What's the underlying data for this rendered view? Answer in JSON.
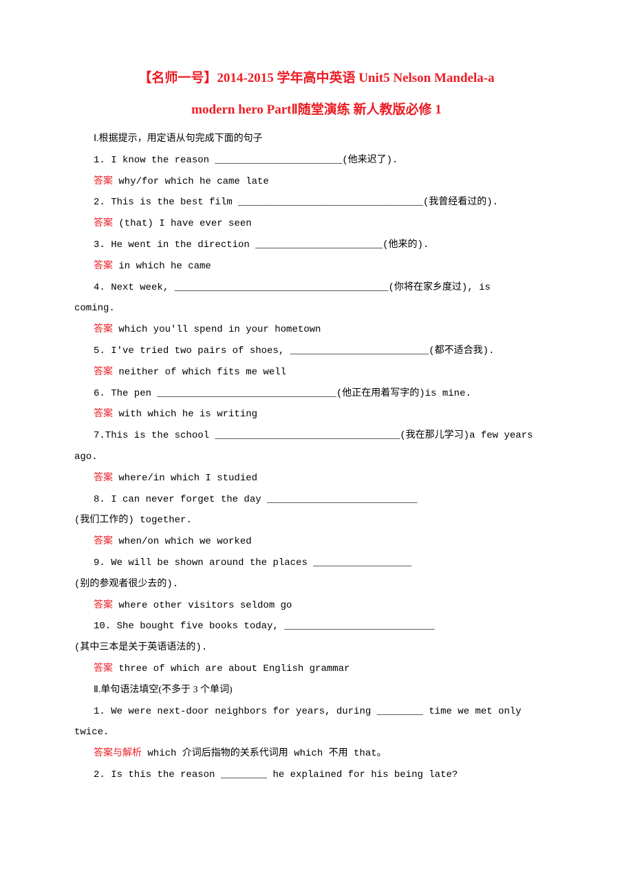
{
  "title_line1": "【名师一号】2014-2015 学年高中英语 Unit5 Nelson Mandela-a",
  "title_line2": "modern hero PartⅡ随堂演练 新人教版必修 1",
  "section1_header": "Ⅰ.根据提示，用定语从句完成下面的句子",
  "answer_label": "答案",
  "answer_explain_label": "答案与解析",
  "section1": {
    "q1": "1. I know the reason ______________________(他来迟了).",
    "a1": "  why/for which he came late",
    "q2": "2. This is the best film ________________________________(我曾经看过的).",
    "a2": "  (that) I have ever seen",
    "q3": "3. He went in the direction ______________________(他来的).",
    "a3": "  in which he came",
    "q4_part1": "4. Next week, _____________________________________(你将在家乡度过), is",
    "q4_part2": "coming.",
    "a4": "  which you'll spend in your hometown",
    "q5": "5. I've tried two pairs of shoes, ________________________(都不适合我).",
    "a5": "  neither of which fits me well",
    "q6": "6. The pen _______________________________(他正在用着写字的)is mine.",
    "a6": "  with which he is writing",
    "q7_part1": "7.This is the school ________________________________(我在那儿学习)a few years",
    "q7_part2": "ago.",
    "a7": "  where/in which I studied",
    "q8_part1": "8. I can never forget the day __________________________",
    "q8_part2": " (我们工作的) together.",
    "a8": "  when/on which we worked",
    "q9_part1": "9. We will be shown around the places _________________",
    "q9_part2": "(别的参观者很少去的).",
    "a9": "  where other visitors seldom go",
    "q10_part1": "10. She bought five books today, __________________________",
    "q10_part2": "(其中三本是关于英语语法的).",
    "a10": "  three of which are about English grammar"
  },
  "section2_header": "Ⅱ.单句语法填空(不多于 3 个单词)",
  "section2": {
    "q1_part1": "1. We were next-door neighbors for years, during ________ time we met only",
    "q1_part2": "twice.",
    "a1": "  which  介词后指物的关系代词用 which 不用 that。",
    "q2": "2. Is this the reason ________ he explained for his being late?"
  },
  "colors": {
    "title_color": "#ed1c24",
    "text_color": "#000000",
    "answer_label_color": "#ed1c24",
    "background": "#ffffff"
  },
  "typography": {
    "title_fontsize": 19,
    "body_fontsize": 14,
    "line_height": 2.2
  }
}
